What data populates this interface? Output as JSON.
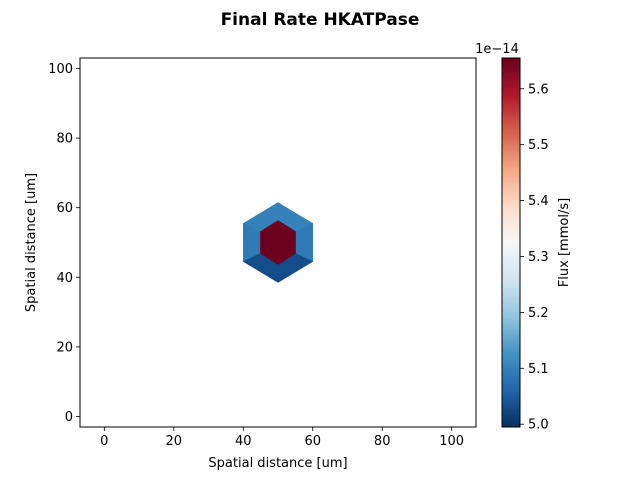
{
  "chart_data": {
    "type": "heatmap",
    "title": "Final Rate HKATPase",
    "xlabel": "Spatial distance [um]",
    "ylabel": "Spatial distance [um]",
    "xlim": [
      -7,
      107
    ],
    "ylim": [
      -3,
      103
    ],
    "x_ticks": [
      0,
      20,
      40,
      60,
      80,
      100
    ],
    "y_ticks": [
      0,
      20,
      40,
      60,
      80,
      100
    ],
    "x_tick_labels": [
      "0",
      "20",
      "40",
      "60",
      "80",
      "100"
    ],
    "y_tick_labels": [
      "0",
      "20",
      "40",
      "60",
      "80",
      "100"
    ],
    "cells": [
      {
        "name": "inner-hexagon",
        "value": 5.65,
        "polygon": [
          [
            50,
            56.5
          ],
          [
            55.2,
            53.2
          ],
          [
            55.2,
            46.8
          ],
          [
            50,
            43.5
          ],
          [
            44.8,
            46.8
          ],
          [
            44.8,
            53.2
          ]
        ]
      },
      {
        "name": "outer-top",
        "value": 5.1,
        "polygon": [
          [
            50,
            61.5
          ],
          [
            60,
            55.5
          ],
          [
            55.2,
            53.2
          ],
          [
            50,
            56.5
          ],
          [
            44.8,
            53.2
          ],
          [
            40,
            55.5
          ]
        ]
      },
      {
        "name": "outer-left",
        "value": 5.09,
        "polygon": [
          [
            40,
            55.5
          ],
          [
            44.8,
            53.2
          ],
          [
            44.8,
            46.8
          ],
          [
            40,
            44.5
          ]
        ]
      },
      {
        "name": "outer-right",
        "value": 5.09,
        "polygon": [
          [
            60,
            55.5
          ],
          [
            60,
            44.5
          ],
          [
            55.2,
            46.8
          ],
          [
            55.2,
            53.2
          ]
        ]
      },
      {
        "name": "outer-bottom",
        "value": 5.03,
        "polygon": [
          [
            40,
            44.5
          ],
          [
            44.8,
            46.8
          ],
          [
            50,
            43.5
          ],
          [
            55.2,
            46.8
          ],
          [
            60,
            44.5
          ],
          [
            50,
            38.5
          ]
        ]
      }
    ],
    "colorbar": {
      "label": "Flux [mmol/s]",
      "multiplier": "1e−14",
      "min": 4.995,
      "max": 5.655,
      "colormap": "RdBu_r",
      "ticks": [
        5.0,
        5.1,
        5.2,
        5.3,
        5.4,
        5.5,
        5.6
      ],
      "tick_labels": [
        "5.0",
        "5.1",
        "5.2",
        "5.3",
        "5.4",
        "5.5",
        "5.6"
      ]
    },
    "grid": false
  }
}
